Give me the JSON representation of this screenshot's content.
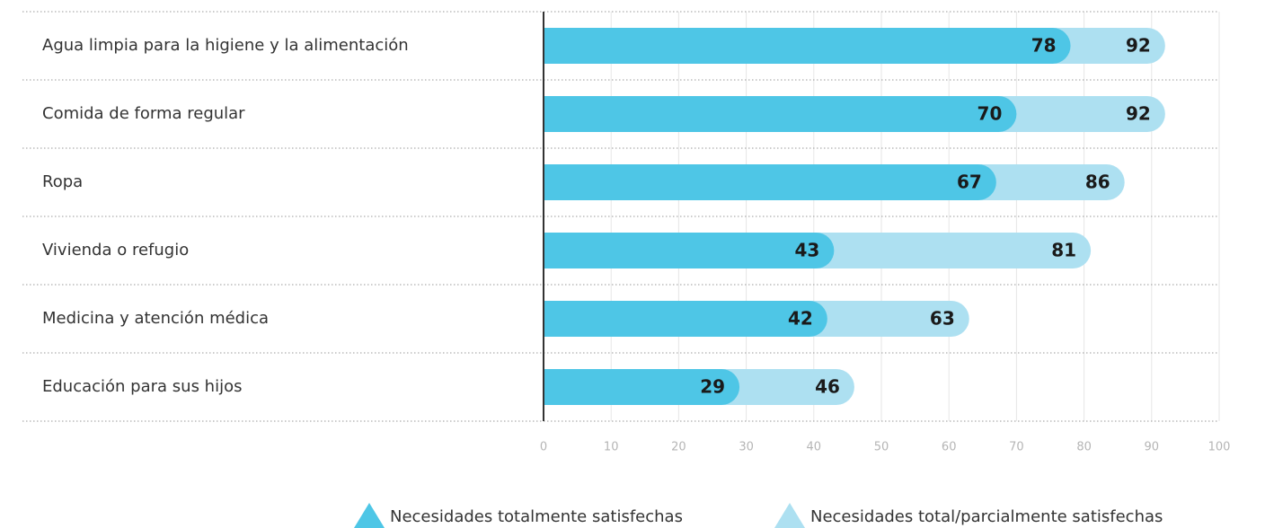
{
  "chart_data": {
    "type": "bar",
    "orientation": "horizontal",
    "categories": [
      "Agua limpia para la higiene y la alimentación",
      "Comida de forma regular",
      "Ropa",
      "Vivienda o refugio",
      "Medicina y atención médica",
      "Educación para sus hijos"
    ],
    "series": [
      {
        "name": "Necesidades totalmente satisfechas",
        "color": "#4ec6e6",
        "values": [
          78,
          70,
          67,
          43,
          42,
          29
        ]
      },
      {
        "name": "Necesidades total/parcialmente satisfechas",
        "color": "#ade0f1",
        "values": [
          92,
          92,
          86,
          81,
          63,
          46
        ]
      }
    ],
    "xlim": [
      0,
      100
    ],
    "xticks": [
      0,
      10,
      20,
      30,
      40,
      50,
      60,
      70,
      80,
      90,
      100
    ],
    "grid": true
  }
}
